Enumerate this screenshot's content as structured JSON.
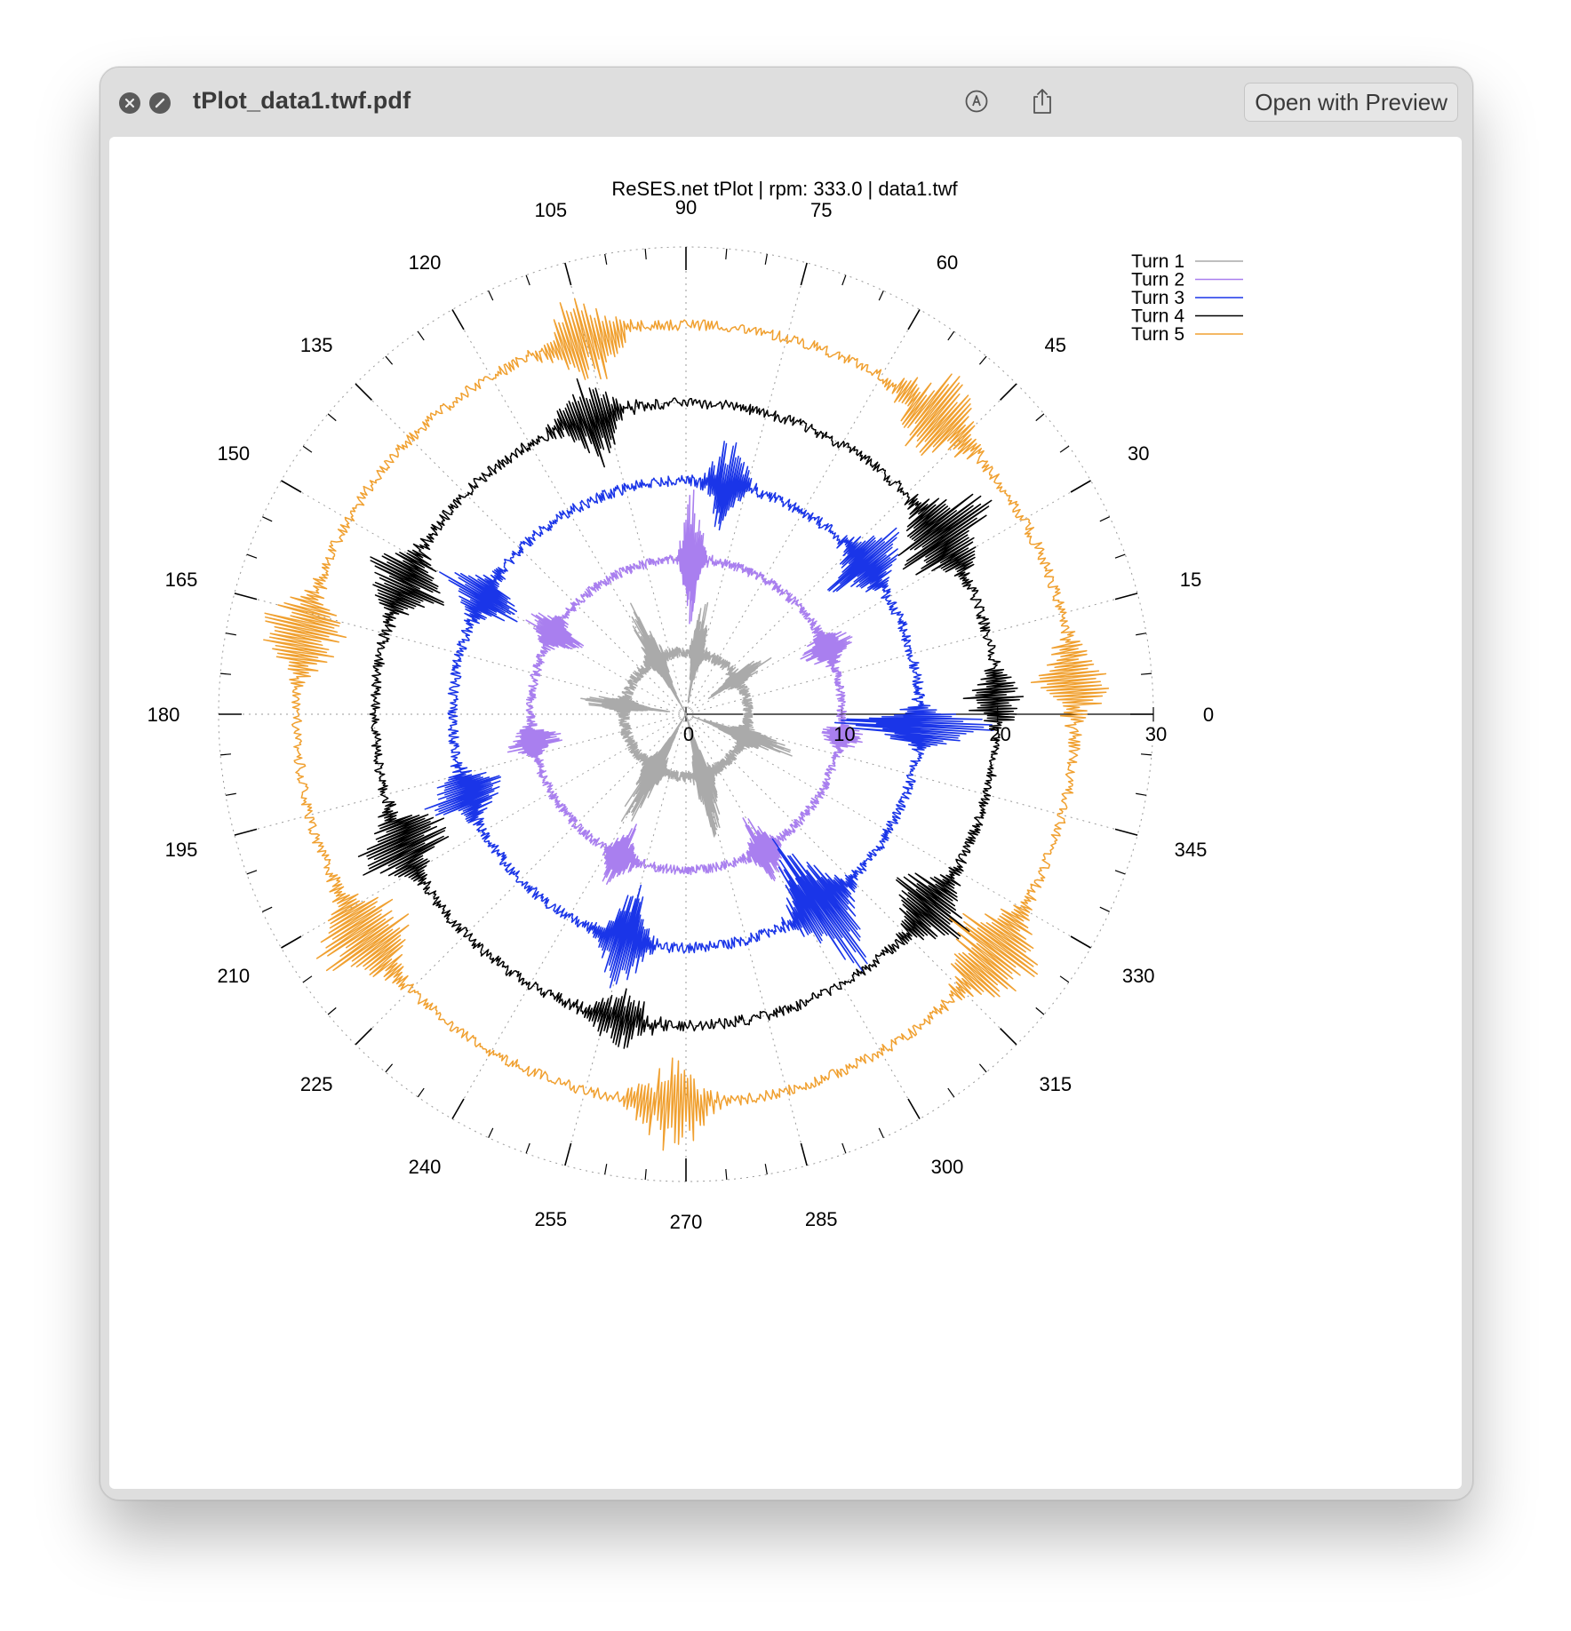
{
  "window": {
    "title": "tPlot_data1.twf.pdf",
    "open_with_label": "Open with Preview",
    "icons": [
      "close-icon",
      "block-icon",
      "markup-icon",
      "share-icon"
    ]
  },
  "chart_data": {
    "type": "polar-line",
    "title": "ReSES.net tPlot | rpm: 333.0 | data1.twf",
    "angle_unit": "degrees",
    "angle_ticks": [
      "0",
      "15",
      "30",
      "45",
      "60",
      "75",
      "90",
      "105",
      "120",
      "135",
      "150",
      "165",
      "180",
      "195",
      "210",
      "225",
      "240",
      "255",
      "270",
      "285",
      "300",
      "315",
      "330",
      "345"
    ],
    "radial_ticks": [
      "0",
      "10",
      "20",
      "30"
    ],
    "rlim": [
      0,
      30
    ],
    "grid": true,
    "legend_position": "top-right",
    "series": [
      {
        "name": "Turn 1",
        "color": "#aaaaaa",
        "base_radius": 4,
        "noise": 0.35,
        "bursts": [
          {
            "angle": 80,
            "amp": 3.5,
            "width": 6
          },
          {
            "angle": 118,
            "amp": 4.0,
            "width": 7
          },
          {
            "angle": 172,
            "amp": 3.0,
            "width": 6
          },
          {
            "angle": 240,
            "amp": 4.5,
            "width": 8
          },
          {
            "angle": 285,
            "amp": 4.5,
            "width": 8
          },
          {
            "angle": 340,
            "amp": 3.5,
            "width": 7
          },
          {
            "angle": 35,
            "amp": 2.5,
            "width": 6
          }
        ]
      },
      {
        "name": "Turn 2",
        "color": "#a97fef",
        "base_radius": 10,
        "noise": 0.3,
        "bursts": [
          {
            "angle": 88,
            "amp": 4.5,
            "width": 5
          },
          {
            "angle": 25,
            "amp": 2.2,
            "width": 6
          },
          {
            "angle": 148,
            "amp": 2.2,
            "width": 6
          },
          {
            "angle": 190,
            "amp": 2.0,
            "width": 6
          },
          {
            "angle": 245,
            "amp": 2.2,
            "width": 6
          },
          {
            "angle": 300,
            "amp": 2.5,
            "width": 6
          },
          {
            "angle": 352,
            "amp": 1.5,
            "width": 5
          }
        ]
      },
      {
        "name": "Turn 3",
        "color": "#1a35e8",
        "base_radius": 15,
        "noise": 0.35,
        "bursts": [
          {
            "angle": 80,
            "amp": 3.0,
            "width": 6
          },
          {
            "angle": 40,
            "amp": 3.0,
            "width": 7
          },
          {
            "angle": 150,
            "amp": 3.0,
            "width": 6
          },
          {
            "angle": 200,
            "amp": 3.0,
            "width": 6
          },
          {
            "angle": 255,
            "amp": 3.5,
            "width": 7
          },
          {
            "angle": 305,
            "amp": 5.0,
            "width": 8
          },
          {
            "angle": 357,
            "amp": 6.0,
            "width": 5
          }
        ]
      },
      {
        "name": "Turn 4",
        "color": "#000000",
        "base_radius": 20,
        "noise": 0.35,
        "bursts": [
          {
            "angle": 108,
            "amp": 3.0,
            "width": 7
          },
          {
            "angle": 35,
            "amp": 4.0,
            "width": 8
          },
          {
            "angle": 155,
            "amp": 3.0,
            "width": 7
          },
          {
            "angle": 205,
            "amp": 3.5,
            "width": 7
          },
          {
            "angle": 258,
            "amp": 2.0,
            "width": 7
          },
          {
            "angle": 322,
            "amp": 3.0,
            "width": 7
          },
          {
            "angle": 3,
            "amp": 2.0,
            "width": 6
          }
        ]
      },
      {
        "name": "Turn 5",
        "color": "#f0a030",
        "base_radius": 25,
        "noise": 0.35,
        "bursts": [
          {
            "angle": 105,
            "amp": 3.0,
            "width": 7
          },
          {
            "angle": 50,
            "amp": 3.0,
            "width": 8
          },
          {
            "angle": 168,
            "amp": 3.0,
            "width": 7
          },
          {
            "angle": 215,
            "amp": 3.5,
            "width": 8
          },
          {
            "angle": 268,
            "amp": 3.0,
            "width": 7
          },
          {
            "angle": 322,
            "amp": 3.5,
            "width": 8
          },
          {
            "angle": 5,
            "amp": 2.5,
            "width": 7
          }
        ]
      }
    ]
  }
}
